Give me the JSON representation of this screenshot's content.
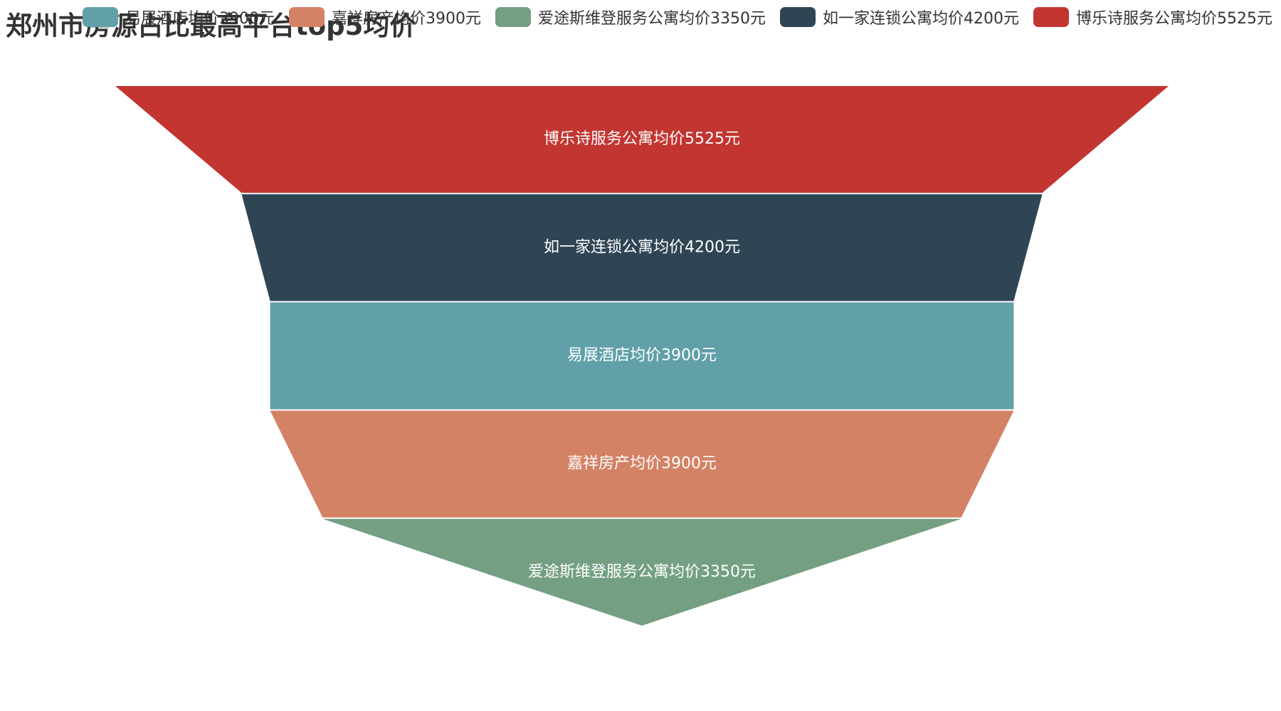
{
  "chart_data": {
    "type": "funnel",
    "title": "郑州市房源占比最高平台top5均价",
    "legend_position": "top-right",
    "legend": [
      {
        "name": "易展酒店均价3900元",
        "color": "#61a0a8"
      },
      {
        "name": "嘉祥房产均价3900元",
        "color": "#d48265"
      },
      {
        "name": "爱途斯维登服务公寓均价3350元",
        "color": "#749f83"
      },
      {
        "name": "如一家连锁公寓均价4200元",
        "color": "#2f4554"
      },
      {
        "name": "博乐诗服务公寓均价5525元",
        "color": "#c23531"
      }
    ],
    "series": [
      {
        "name": "博乐诗服务公寓均价5525元",
        "value": 5525,
        "color": "#c23531"
      },
      {
        "name": "如一家连锁公寓均价4200元",
        "value": 4200,
        "color": "#2f4554"
      },
      {
        "name": "易展酒店均价3900元",
        "value": 3900,
        "color": "#61a0a8"
      },
      {
        "name": "嘉祥房产均价3900元",
        "value": 3900,
        "color": "#d48265"
      },
      {
        "name": "爱途斯维登服务公寓均价3350元",
        "value": 3350,
        "color": "#749f83"
      }
    ],
    "sort": "descending"
  }
}
